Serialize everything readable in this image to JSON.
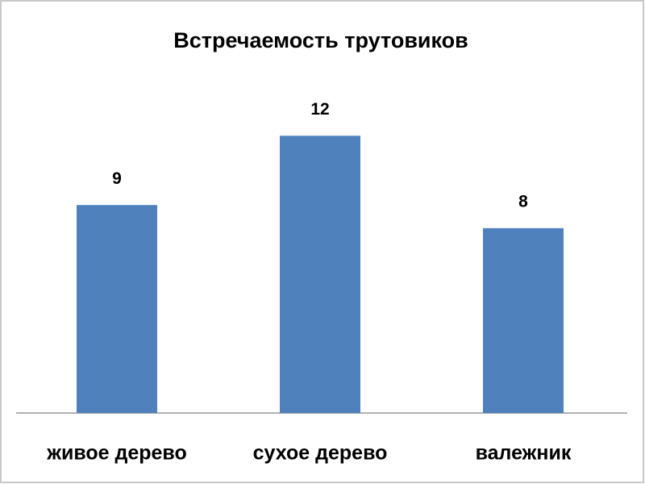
{
  "chart_data": {
    "type": "bar",
    "title": "Встречаемость трутовиков",
    "categories": [
      "живое дерево",
      "сухое дерево",
      "валежник"
    ],
    "values": [
      9,
      12,
      8
    ],
    "color": "#4f81bd",
    "ylim": [
      0,
      14
    ],
    "data_labels": true
  }
}
